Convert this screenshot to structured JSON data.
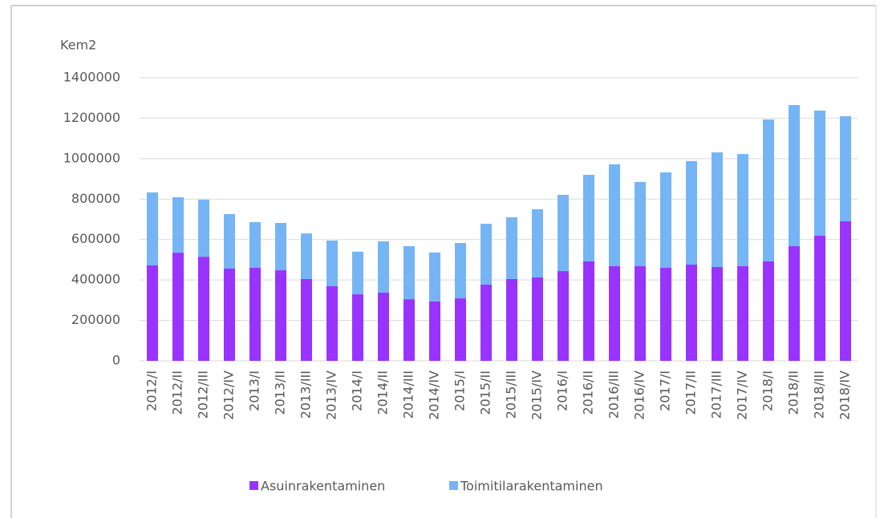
{
  "chart_data": {
    "type": "stacked_bar",
    "y_label": "Kem2",
    "categories": [
      "2012/I",
      "2012/II",
      "2012/III",
      "2012/IV",
      "2013/I",
      "2013/II",
      "2013/III",
      "2013/IV",
      "2014/I",
      "2014/II",
      "2014/III",
      "2014/IV",
      "2015/I",
      "2015/II",
      "2015/III",
      "2015/IV",
      "2016/I",
      "2016/II",
      "2016/III",
      "2016/IV",
      "2017/I",
      "2017/II",
      "2017/III",
      "2017/IV",
      "2018/I",
      "2018/II",
      "2018/III",
      "2018/IV"
    ],
    "series": [
      {
        "name": "Asuinrakentaminen",
        "color": "#9933ff",
        "values": [
          472000,
          535000,
          515000,
          456000,
          460000,
          448000,
          405000,
          369000,
          329000,
          337000,
          305000,
          294000,
          309000,
          377000,
          405000,
          413000,
          444000,
          492000,
          468000,
          468000,
          460000,
          476000,
          464000,
          468000,
          492000,
          567000,
          619000,
          690000
        ]
      },
      {
        "name": "Toimitilarakentaminen",
        "color": "#75b5f5",
        "values": [
          361000,
          274000,
          282000,
          270000,
          226000,
          234000,
          225000,
          226000,
          211000,
          254000,
          262000,
          242000,
          274000,
          301000,
          305000,
          337000,
          377000,
          428000,
          504000,
          417000,
          472000,
          512000,
          567000,
          555000,
          702000,
          698000,
          619000,
          520000
        ]
      }
    ],
    "ylim": [
      0,
      1400000
    ],
    "yticks": [
      0,
      200000,
      400000,
      600000,
      800000,
      1000000,
      1200000,
      1400000
    ],
    "grid": true,
    "legend": "bottom"
  }
}
